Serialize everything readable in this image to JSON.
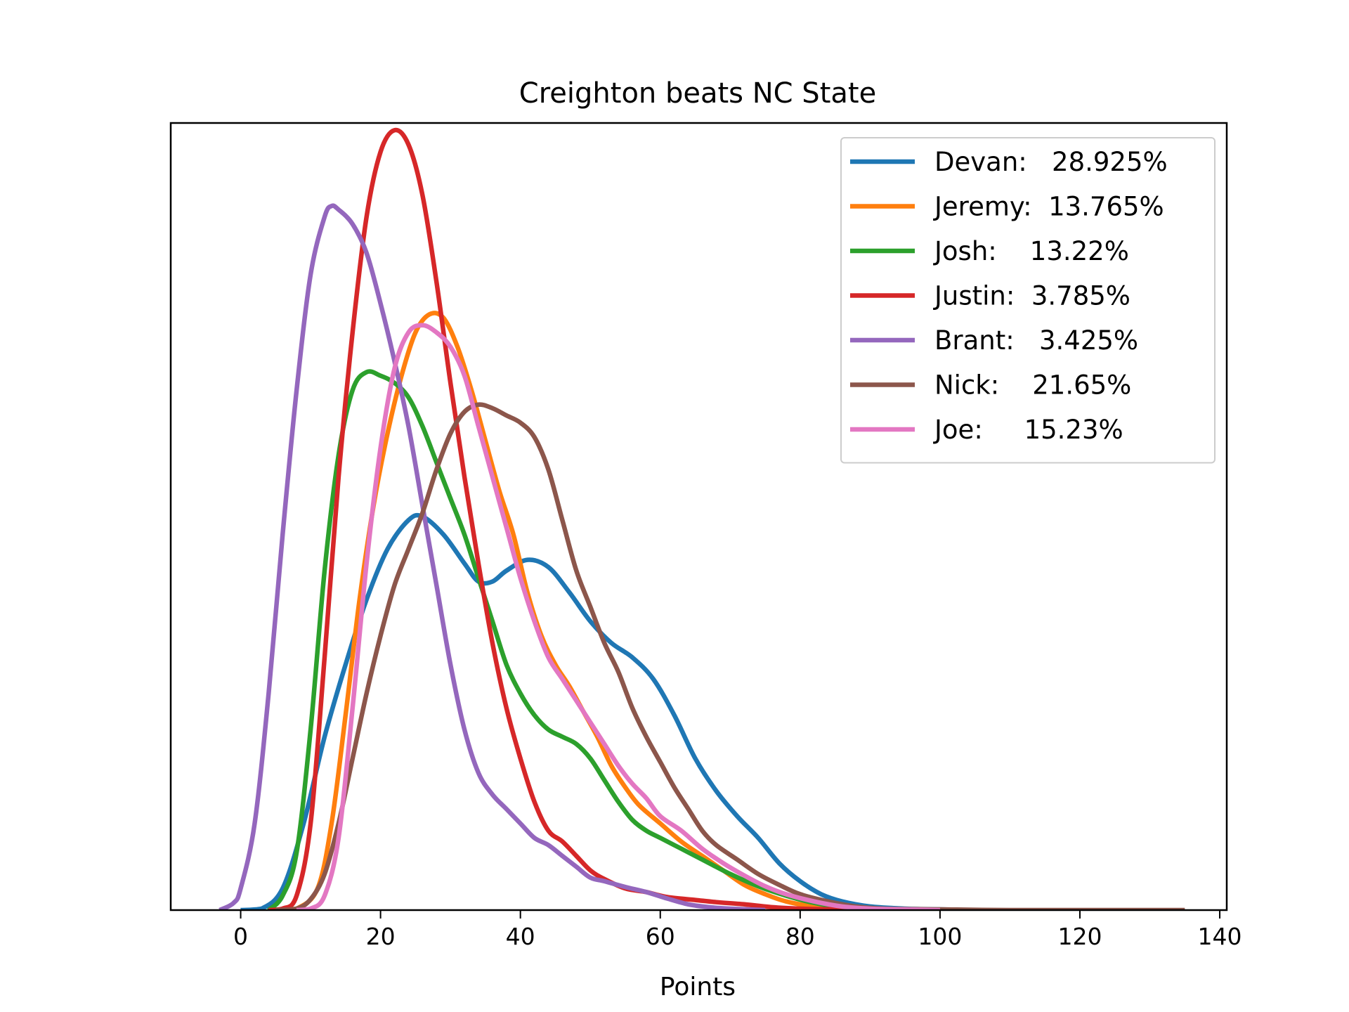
{
  "chart_data": {
    "type": "line",
    "title": "Creighton beats NC State",
    "xlabel": "Points",
    "ylabel": "",
    "xlim": [
      -10,
      141
    ],
    "ylim": [
      0,
      1.09
    ],
    "xticks": [
      0,
      20,
      40,
      60,
      80,
      100,
      120,
      140
    ],
    "grid": false,
    "legend_position": "top-right",
    "series": [
      {
        "name": "Devan:   28.925%",
        "color": "#1f77b4",
        "points": [
          [
            0,
            0
          ],
          [
            3,
            0.002
          ],
          [
            6,
            0.03
          ],
          [
            9,
            0.12
          ],
          [
            12,
            0.24
          ],
          [
            15,
            0.34
          ],
          [
            18,
            0.43
          ],
          [
            21,
            0.5
          ],
          [
            24,
            0.54
          ],
          [
            26,
            0.545
          ],
          [
            29,
            0.52
          ],
          [
            32,
            0.48
          ],
          [
            34,
            0.455
          ],
          [
            36,
            0.455
          ],
          [
            38,
            0.47
          ],
          [
            41,
            0.485
          ],
          [
            44,
            0.475
          ],
          [
            47,
            0.44
          ],
          [
            50,
            0.4
          ],
          [
            53,
            0.37
          ],
          [
            56,
            0.35
          ],
          [
            59,
            0.32
          ],
          [
            62,
            0.27
          ],
          [
            65,
            0.21
          ],
          [
            68,
            0.165
          ],
          [
            71,
            0.13
          ],
          [
            74,
            0.1
          ],
          [
            77,
            0.065
          ],
          [
            80,
            0.04
          ],
          [
            83,
            0.022
          ],
          [
            86,
            0.012
          ],
          [
            90,
            0.005
          ],
          [
            95,
            0.002
          ],
          [
            100,
            0.001
          ],
          [
            104,
            0
          ]
        ]
      },
      {
        "name": "Jeremy:  13.765%",
        "color": "#ff7f0e",
        "points": [
          [
            5,
            0
          ],
          [
            8,
            0.002
          ],
          [
            11,
            0.03
          ],
          [
            13,
            0.12
          ],
          [
            15,
            0.27
          ],
          [
            17,
            0.43
          ],
          [
            19,
            0.56
          ],
          [
            21,
            0.66
          ],
          [
            23,
            0.74
          ],
          [
            25,
            0.8
          ],
          [
            27,
            0.825
          ],
          [
            29,
            0.82
          ],
          [
            31,
            0.78
          ],
          [
            33,
            0.72
          ],
          [
            35,
            0.65
          ],
          [
            37,
            0.58
          ],
          [
            39,
            0.52
          ],
          [
            41,
            0.44
          ],
          [
            43,
            0.38
          ],
          [
            45,
            0.34
          ],
          [
            47,
            0.31
          ],
          [
            49,
            0.275
          ],
          [
            51,
            0.24
          ],
          [
            53,
            0.2
          ],
          [
            55,
            0.17
          ],
          [
            57,
            0.145
          ],
          [
            60,
            0.12
          ],
          [
            63,
            0.095
          ],
          [
            66,
            0.075
          ],
          [
            69,
            0.055
          ],
          [
            72,
            0.035
          ],
          [
            75,
            0.022
          ],
          [
            78,
            0.012
          ],
          [
            82,
            0.005
          ],
          [
            86,
            0.002
          ],
          [
            90,
            0.001
          ],
          [
            95,
            0
          ]
        ]
      },
      {
        "name": "Josh:    13.22%",
        "color": "#2ca02c",
        "points": [
          [
            4,
            0
          ],
          [
            6,
            0.02
          ],
          [
            8,
            0.08
          ],
          [
            10,
            0.25
          ],
          [
            12,
            0.47
          ],
          [
            14,
            0.63
          ],
          [
            16,
            0.72
          ],
          [
            18,
            0.745
          ],
          [
            20,
            0.74
          ],
          [
            22,
            0.73
          ],
          [
            24,
            0.71
          ],
          [
            26,
            0.67
          ],
          [
            28,
            0.62
          ],
          [
            30,
            0.57
          ],
          [
            32,
            0.52
          ],
          [
            34,
            0.46
          ],
          [
            36,
            0.4
          ],
          [
            38,
            0.34
          ],
          [
            40,
            0.3
          ],
          [
            42,
            0.27
          ],
          [
            44,
            0.25
          ],
          [
            46,
            0.24
          ],
          [
            48,
            0.23
          ],
          [
            50,
            0.21
          ],
          [
            52,
            0.18
          ],
          [
            54,
            0.15
          ],
          [
            56,
            0.125
          ],
          [
            58,
            0.11
          ],
          [
            60,
            0.1
          ],
          [
            63,
            0.085
          ],
          [
            66,
            0.07
          ],
          [
            70,
            0.05
          ],
          [
            74,
            0.033
          ],
          [
            78,
            0.02
          ],
          [
            82,
            0.01
          ],
          [
            86,
            0.004
          ],
          [
            90,
            0.001
          ],
          [
            94,
            0
          ]
        ]
      },
      {
        "name": "Justin:  3.785%",
        "color": "#d62728",
        "points": [
          [
            4,
            0
          ],
          [
            6,
            0.002
          ],
          [
            8,
            0.02
          ],
          [
            10,
            0.12
          ],
          [
            12,
            0.35
          ],
          [
            14,
            0.6
          ],
          [
            16,
            0.8
          ],
          [
            18,
            0.96
          ],
          [
            20,
            1.05
          ],
          [
            22,
            1.08
          ],
          [
            24,
            1.06
          ],
          [
            26,
            0.99
          ],
          [
            28,
            0.87
          ],
          [
            30,
            0.73
          ],
          [
            32,
            0.6
          ],
          [
            34,
            0.48
          ],
          [
            36,
            0.37
          ],
          [
            38,
            0.28
          ],
          [
            40,
            0.21
          ],
          [
            42,
            0.15
          ],
          [
            44,
            0.11
          ],
          [
            46,
            0.095
          ],
          [
            48,
            0.075
          ],
          [
            50,
            0.055
          ],
          [
            52,
            0.043
          ],
          [
            55,
            0.03
          ],
          [
            58,
            0.025
          ],
          [
            61,
            0.018
          ],
          [
            65,
            0.014
          ],
          [
            68,
            0.011
          ],
          [
            72,
            0.008
          ],
          [
            76,
            0.004
          ],
          [
            80,
            0.002
          ],
          [
            85,
            0.001
          ],
          [
            90,
            0
          ]
        ]
      },
      {
        "name": "Brant:   3.425%",
        "color": "#9467bd",
        "points": [
          [
            -3,
            0
          ],
          [
            -1,
            0.01
          ],
          [
            0,
            0.03
          ],
          [
            2,
            0.12
          ],
          [
            4,
            0.3
          ],
          [
            6,
            0.52
          ],
          [
            8,
            0.72
          ],
          [
            10,
            0.88
          ],
          [
            12,
            0.96
          ],
          [
            13,
            0.975
          ],
          [
            14,
            0.97
          ],
          [
            16,
            0.95
          ],
          [
            18,
            0.91
          ],
          [
            20,
            0.84
          ],
          [
            22,
            0.76
          ],
          [
            24,
            0.67
          ],
          [
            26,
            0.56
          ],
          [
            28,
            0.45
          ],
          [
            30,
            0.34
          ],
          [
            32,
            0.25
          ],
          [
            34,
            0.19
          ],
          [
            36,
            0.16
          ],
          [
            38,
            0.14
          ],
          [
            40,
            0.12
          ],
          [
            42,
            0.1
          ],
          [
            44,
            0.09
          ],
          [
            46,
            0.075
          ],
          [
            48,
            0.06
          ],
          [
            50,
            0.045
          ],
          [
            52,
            0.04
          ],
          [
            55,
            0.032
          ],
          [
            58,
            0.025
          ],
          [
            61,
            0.016
          ],
          [
            64,
            0.008
          ],
          [
            67,
            0.004
          ],
          [
            70,
            0.002
          ],
          [
            75,
            0
          ]
        ]
      },
      {
        "name": "Nick:    21.65%",
        "color": "#8c564b",
        "points": [
          [
            5,
            0
          ],
          [
            8,
            0.002
          ],
          [
            10,
            0.015
          ],
          [
            12,
            0.05
          ],
          [
            14,
            0.12
          ],
          [
            16,
            0.21
          ],
          [
            18,
            0.3
          ],
          [
            20,
            0.38
          ],
          [
            22,
            0.45
          ],
          [
            24,
            0.5
          ],
          [
            26,
            0.55
          ],
          [
            28,
            0.61
          ],
          [
            30,
            0.66
          ],
          [
            32,
            0.69
          ],
          [
            34,
            0.7
          ],
          [
            36,
            0.695
          ],
          [
            38,
            0.685
          ],
          [
            40,
            0.675
          ],
          [
            42,
            0.655
          ],
          [
            44,
            0.61
          ],
          [
            46,
            0.54
          ],
          [
            48,
            0.47
          ],
          [
            50,
            0.42
          ],
          [
            52,
            0.37
          ],
          [
            54,
            0.33
          ],
          [
            56,
            0.28
          ],
          [
            58,
            0.24
          ],
          [
            60,
            0.205
          ],
          [
            62,
            0.17
          ],
          [
            64,
            0.14
          ],
          [
            66,
            0.11
          ],
          [
            68,
            0.09
          ],
          [
            71,
            0.07
          ],
          [
            74,
            0.05
          ],
          [
            77,
            0.035
          ],
          [
            80,
            0.022
          ],
          [
            84,
            0.012
          ],
          [
            88,
            0.005
          ],
          [
            92,
            0.002
          ],
          [
            100,
            0.001
          ],
          [
            110,
            0
          ],
          [
            135,
            0
          ]
        ]
      },
      {
        "name": "Joe:     15.23%",
        "color": "#e377c2",
        "points": [
          [
            8,
            0
          ],
          [
            10,
            0.002
          ],
          [
            12,
            0.02
          ],
          [
            14,
            0.1
          ],
          [
            16,
            0.28
          ],
          [
            18,
            0.48
          ],
          [
            20,
            0.64
          ],
          [
            22,
            0.75
          ],
          [
            24,
            0.8
          ],
          [
            26,
            0.81
          ],
          [
            28,
            0.8
          ],
          [
            30,
            0.78
          ],
          [
            32,
            0.74
          ],
          [
            34,
            0.67
          ],
          [
            36,
            0.6
          ],
          [
            38,
            0.53
          ],
          [
            40,
            0.46
          ],
          [
            42,
            0.4
          ],
          [
            44,
            0.35
          ],
          [
            46,
            0.32
          ],
          [
            48,
            0.29
          ],
          [
            50,
            0.26
          ],
          [
            52,
            0.23
          ],
          [
            54,
            0.2
          ],
          [
            56,
            0.175
          ],
          [
            58,
            0.155
          ],
          [
            60,
            0.13
          ],
          [
            63,
            0.11
          ],
          [
            66,
            0.085
          ],
          [
            69,
            0.065
          ],
          [
            72,
            0.048
          ],
          [
            75,
            0.033
          ],
          [
            78,
            0.022
          ],
          [
            82,
            0.012
          ],
          [
            86,
            0.005
          ],
          [
            90,
            0.002
          ],
          [
            95,
            0.001
          ],
          [
            100,
            0
          ]
        ]
      }
    ]
  }
}
